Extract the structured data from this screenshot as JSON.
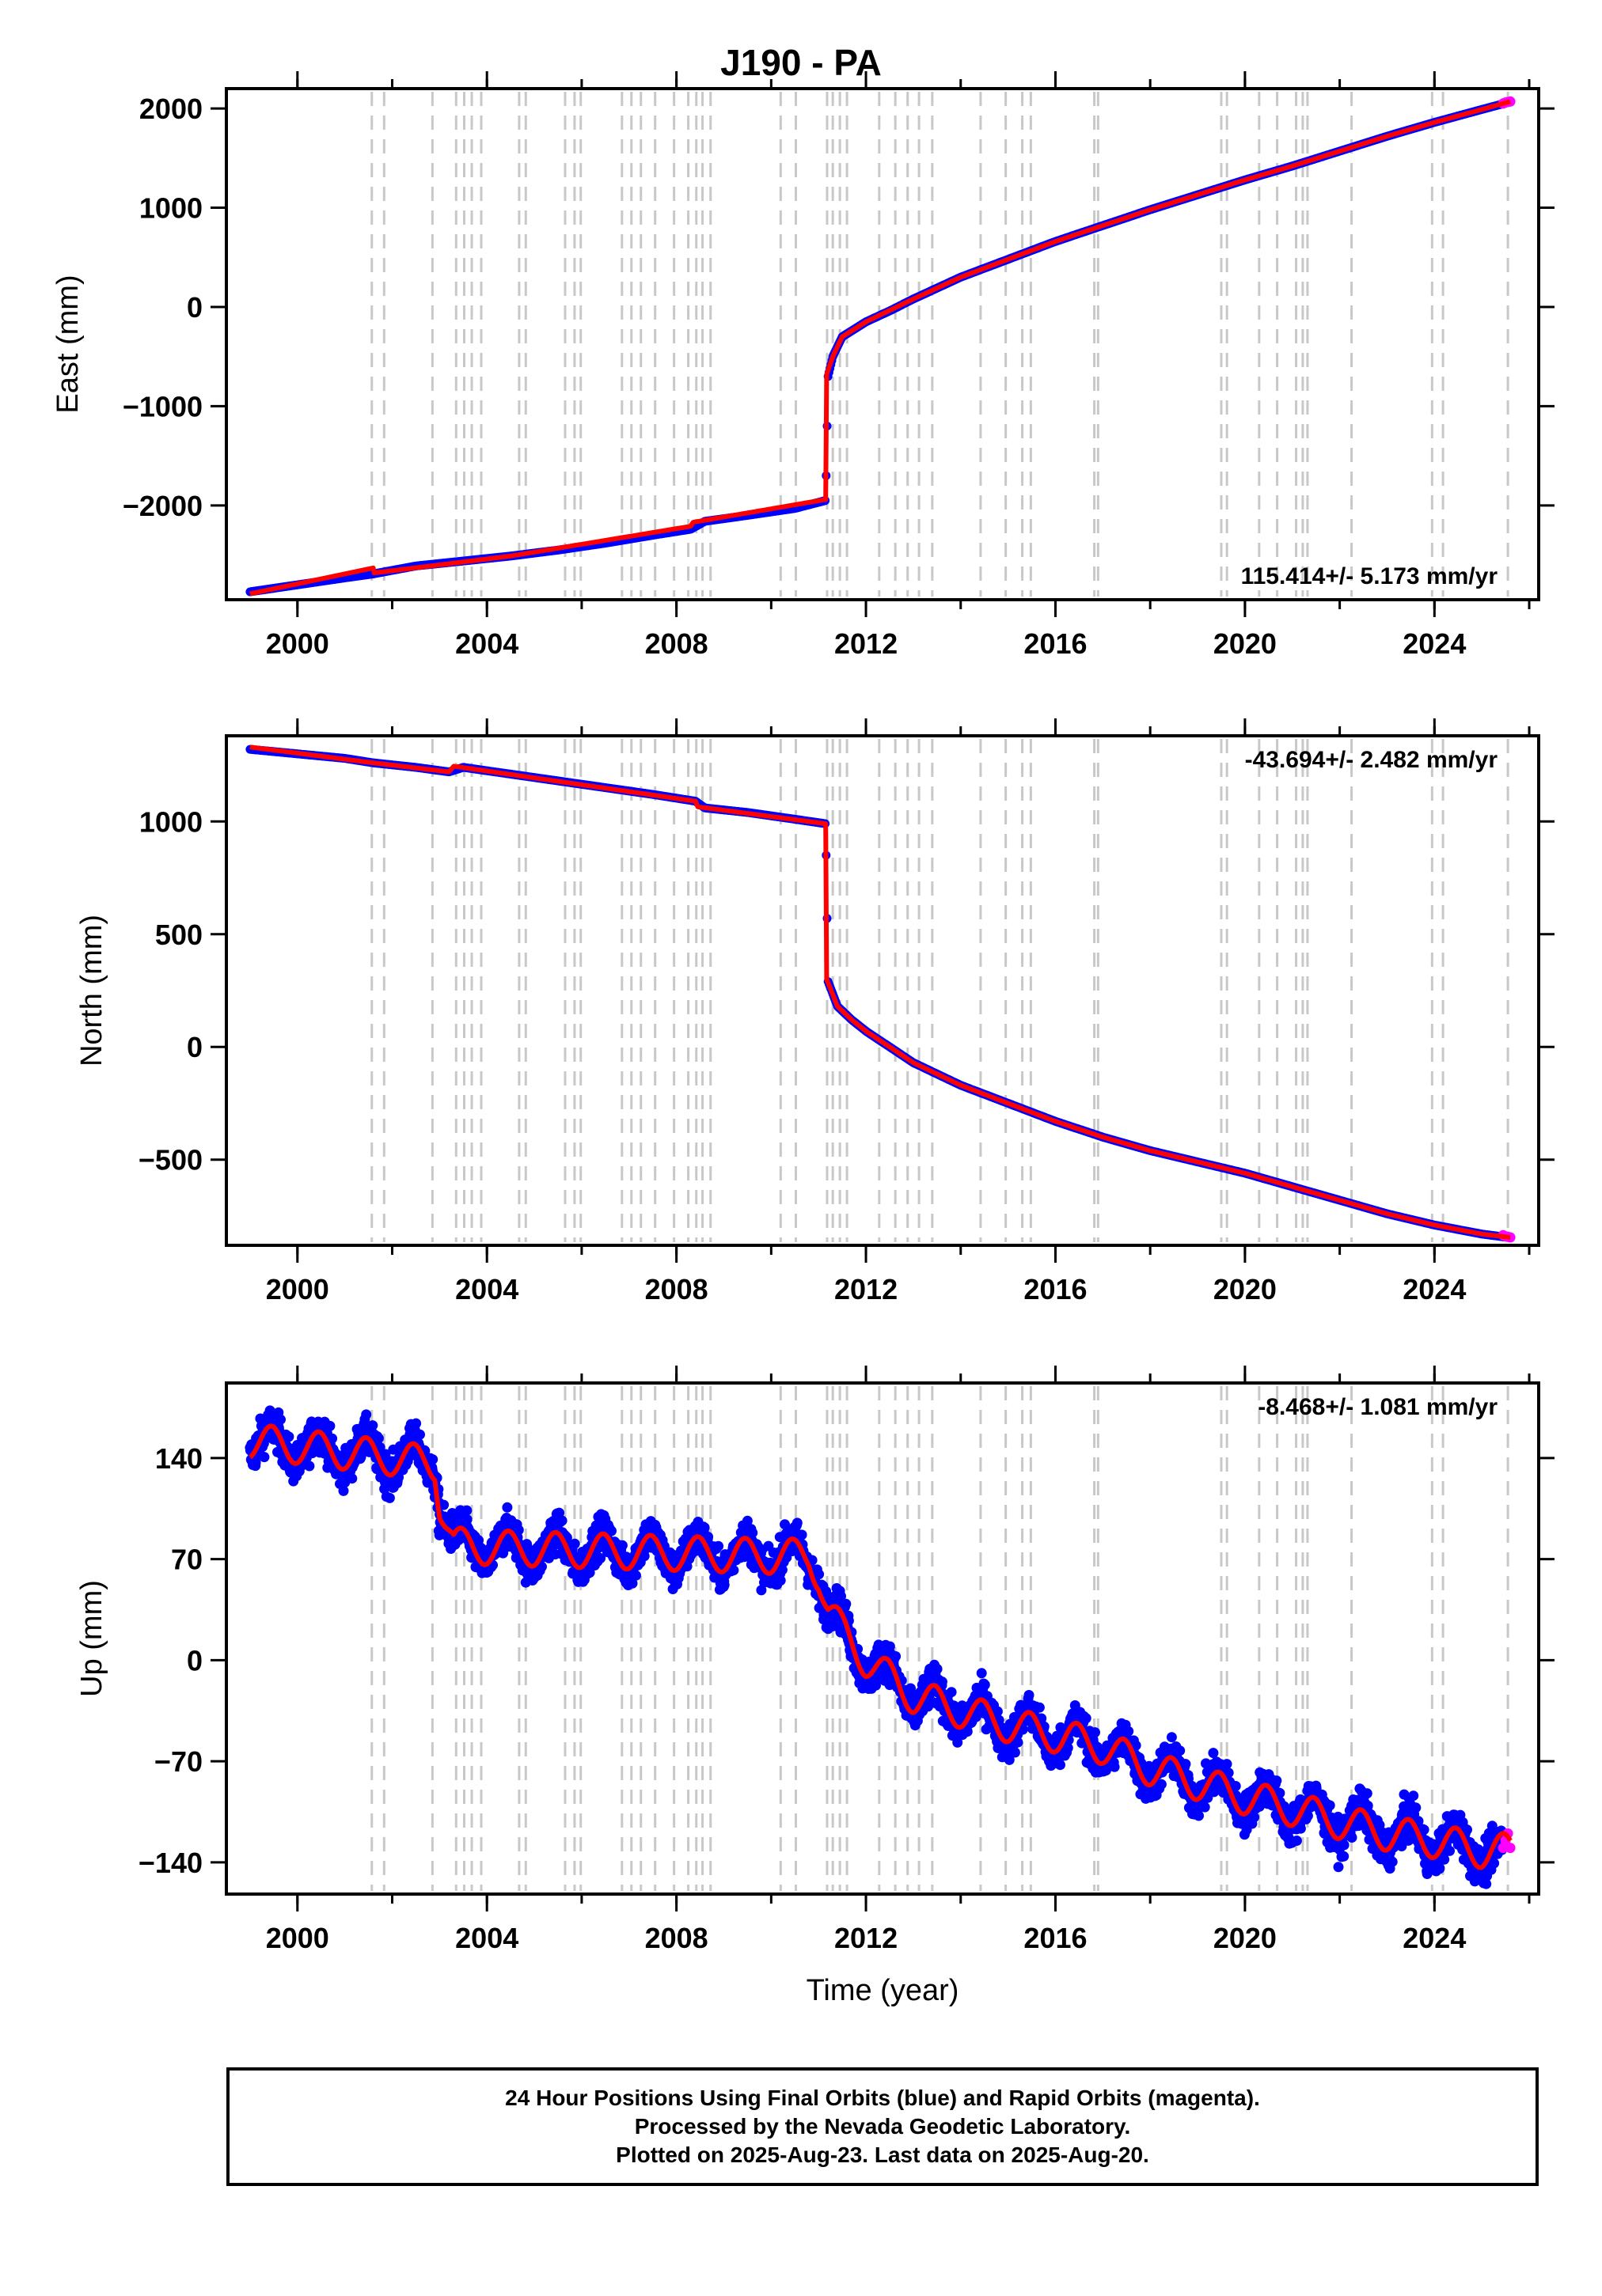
{
  "chart_data": [
    {
      "type": "scatter",
      "title": "J190 - PA",
      "xlabel": "",
      "ylabel": "East (mm)",
      "xlim": [
        1998.5,
        2026.2
      ],
      "ylim": [
        -2950,
        2200
      ],
      "xticks": [
        2000,
        2004,
        2008,
        2012,
        2016,
        2020,
        2024
      ],
      "yticks": [
        -2000,
        -1000,
        0,
        1000,
        2000
      ],
      "rate_label": "115.414+/- 5.173 mm/yr",
      "rate_position": "bottom-right",
      "series": [
        {
          "kind": "final_orbits",
          "color": "#0000ff",
          "x": [
            1999.0,
            2000.0,
            2001.0,
            2001.6,
            2002.5,
            2003.5,
            2004.5,
            2005.5,
            2006.5,
            2007.5,
            2008.3,
            2008.6,
            2009.5,
            2010.5,
            2011.15,
            2011.2,
            2011.3,
            2011.5,
            2012.0,
            2012.5,
            2013.0,
            2014.0,
            2015.0,
            2016.0,
            2017.0,
            2018.0,
            2019.0,
            2020.0,
            2021.0,
            2022.0,
            2023.0,
            2024.0,
            2025.0,
            2025.55
          ],
          "y": [
            -2870,
            -2800,
            -2730,
            -2690,
            -2610,
            -2560,
            -2510,
            -2450,
            -2380,
            -2300,
            -2240,
            -2160,
            -2100,
            -2030,
            -1950,
            -700,
            -500,
            -300,
            -150,
            -40,
            80,
            300,
            480,
            660,
            820,
            980,
            1130,
            1280,
            1420,
            1570,
            1720,
            1860,
            1990,
            2060
          ]
        },
        {
          "kind": "rapid_orbits",
          "color": "#ff00ff",
          "x": [
            2025.45,
            2025.5,
            2025.55,
            2025.6
          ],
          "y": [
            2050,
            2060,
            2065,
            2070
          ]
        },
        {
          "kind": "model_fit",
          "color": "#ff0000",
          "x": [
            1999.0,
            2001.6,
            2001.62,
            2004.5,
            2008.3,
            2008.35,
            2011.15,
            2011.17,
            2011.3,
            2011.5,
            2012.0,
            2013.0,
            2014.0,
            2015.0,
            2016.0,
            2017.0,
            2018.0,
            2019.0,
            2020.0,
            2021.0,
            2022.0,
            2023.0,
            2024.0,
            2025.0,
            2025.6
          ],
          "y": [
            -2890,
            -2630,
            -2680,
            -2510,
            -2210,
            -2170,
            -1940,
            -680,
            -500,
            -300,
            -150,
            80,
            300,
            480,
            660,
            820,
            980,
            1130,
            1280,
            1420,
            1570,
            1720,
            1860,
            1990,
            2070
          ]
        }
      ]
    },
    {
      "type": "scatter",
      "title": "",
      "xlabel": "",
      "ylabel": "North (mm)",
      "xlim": [
        1998.5,
        2026.2
      ],
      "ylim": [
        -880,
        1380
      ],
      "xticks": [
        2000,
        2004,
        2008,
        2012,
        2016,
        2020,
        2024
      ],
      "yticks": [
        -500,
        0,
        500,
        1000
      ],
      "rate_label": "-43.694+/- 2.482 mm/yr",
      "rate_position": "top-right",
      "series": [
        {
          "kind": "final_orbits",
          "color": "#0000ff",
          "x": [
            1999.0,
            2000.0,
            2001.0,
            2001.6,
            2002.5,
            2003.2,
            2003.5,
            2004.5,
            2005.5,
            2006.5,
            2007.5,
            2008.4,
            2008.6,
            2009.5,
            2010.5,
            2011.15,
            2011.2,
            2011.4,
            2011.7,
            2012.0,
            2012.5,
            2013.0,
            2014.0,
            2015.0,
            2016.0,
            2017.0,
            2018.0,
            2019.0,
            2020.0,
            2021.0,
            2022.0,
            2023.0,
            2024.0,
            2025.0,
            2025.55
          ],
          "y": [
            1320,
            1300,
            1280,
            1260,
            1240,
            1220,
            1240,
            1210,
            1180,
            1150,
            1120,
            1090,
            1060,
            1040,
            1010,
            990,
            290,
            180,
            120,
            70,
            0,
            -70,
            -170,
            -250,
            -330,
            -400,
            -460,
            -510,
            -560,
            -620,
            -680,
            -740,
            -790,
            -830,
            -845
          ]
        },
        {
          "kind": "rapid_orbits",
          "color": "#ff00ff",
          "x": [
            2025.45,
            2025.5,
            2025.55,
            2025.6
          ],
          "y": [
            -835,
            -840,
            -842,
            -845
          ]
        },
        {
          "kind": "model_fit",
          "color": "#ff0000",
          "x": [
            1999.0,
            2001.6,
            2003.2,
            2003.3,
            2008.4,
            2008.45,
            2011.15,
            2011.17,
            2011.4,
            2011.7,
            2012.0,
            2013.0,
            2014.0,
            2015.0,
            2016.0,
            2017.0,
            2018.0,
            2019.0,
            2020.0,
            2021.0,
            2022.0,
            2023.0,
            2024.0,
            2025.0,
            2025.6
          ],
          "y": [
            1330,
            1260,
            1220,
            1245,
            1090,
            1065,
            990,
            300,
            180,
            120,
            70,
            -70,
            -170,
            -250,
            -330,
            -400,
            -460,
            -510,
            -560,
            -620,
            -680,
            -740,
            -790,
            -830,
            -845
          ]
        }
      ]
    },
    {
      "type": "scatter",
      "title": "",
      "xlabel": "Time (year)",
      "ylabel": "Up (mm)",
      "xlim": [
        1998.5,
        2026.2
      ],
      "ylim": [
        -162,
        192
      ],
      "xticks": [
        2000,
        2004,
        2008,
        2012,
        2016,
        2020,
        2024
      ],
      "yticks": [
        -140,
        -70,
        0,
        70,
        140
      ],
      "rate_label": "-8.468+/- 1.081 mm/yr",
      "rate_position": "top-right",
      "seasonal_amplitude_mm": 12,
      "scatter_mm": 11,
      "series": [
        {
          "kind": "final_orbits",
          "color": "#0000ff",
          "x": [
            1999.0,
            2000.0,
            2001.0,
            2002.0,
            2002.9,
            2003.0,
            2003.3,
            2004.0,
            2005.0,
            2006.0,
            2007.0,
            2008.0,
            2009.0,
            2010.0,
            2010.8,
            2011.0,
            2011.2,
            2011.5,
            2012.0,
            2013.0,
            2014.0,
            2015.0,
            2016.0,
            2017.0,
            2018.0,
            2019.0,
            2020.0,
            2021.0,
            2022.0,
            2023.0,
            2024.0,
            2025.0,
            2025.45
          ],
          "y": [
            152,
            148,
            144,
            140,
            136,
            110,
            80,
            78,
            77,
            76,
            75,
            74,
            73,
            72,
            72,
            60,
            35,
            20,
            0,
            -25,
            -35,
            -45,
            -52,
            -60,
            -75,
            -85,
            -95,
            -103,
            -112,
            -120,
            -125,
            -132,
            -135
          ]
        },
        {
          "kind": "rapid_orbits",
          "color": "#ff00ff",
          "x": [
            2025.45,
            2025.5,
            2025.55,
            2025.6
          ],
          "y": [
            -130,
            -125,
            -120,
            -130
          ]
        },
        {
          "kind": "model_fit",
          "color": "#ff0000",
          "x": [
            1999.0,
            2000.0,
            2001.0,
            2002.0,
            2002.9,
            2003.0,
            2003.3,
            2004.0,
            2005.0,
            2006.0,
            2007.0,
            2008.0,
            2009.0,
            2010.0,
            2010.8,
            2011.0,
            2011.2,
            2011.5,
            2012.0,
            2013.0,
            2014.0,
            2015.0,
            2016.0,
            2017.0,
            2018.0,
            2019.0,
            2020.0,
            2021.0,
            2022.0,
            2023.0,
            2024.0,
            2025.0,
            2025.6
          ],
          "y": [
            152,
            148,
            144,
            140,
            136,
            110,
            80,
            78,
            77,
            76,
            75,
            74,
            73,
            72,
            72,
            60,
            35,
            20,
            0,
            -25,
            -35,
            -45,
            -52,
            -60,
            -75,
            -85,
            -95,
            -103,
            -112,
            -120,
            -125,
            -132,
            -132
          ]
        }
      ]
    }
  ],
  "event_lines": [
    2001.57,
    2001.83,
    2002.85,
    2003.35,
    2003.52,
    2003.68,
    2003.88,
    2004.68,
    2004.82,
    2005.65,
    2005.85,
    2005.98,
    2006.85,
    2007.05,
    2007.25,
    2007.55,
    2007.95,
    2008.25,
    2008.42,
    2008.55,
    2008.72,
    2010.2,
    2010.52,
    2011.18,
    2011.3,
    2011.45,
    2011.6,
    2012.28,
    2012.62,
    2012.88,
    2013.12,
    2013.4,
    2014.42,
    2014.95,
    2015.3,
    2015.48,
    2016.82,
    2016.9,
    2019.5,
    2019.62,
    2020.3,
    2020.68,
    2021.08,
    2021.22,
    2021.32,
    2022.25,
    2023.95,
    2024.18,
    2025.55
  ],
  "colors": {
    "final_orbits": "#0000ff",
    "rapid_orbits": "#ff00ff",
    "model_fit": "#ff0000",
    "event_lines": "#c8c8c8",
    "frame": "#000000"
  },
  "footer": {
    "line1": "24 Hour Positions Using Final Orbits (blue) and Rapid Orbits (magenta).",
    "line2": "Processed by the Nevada Geodetic Laboratory.",
    "line3": "Plotted on 2025-Aug-23. Last data on 2025-Aug-20."
  }
}
